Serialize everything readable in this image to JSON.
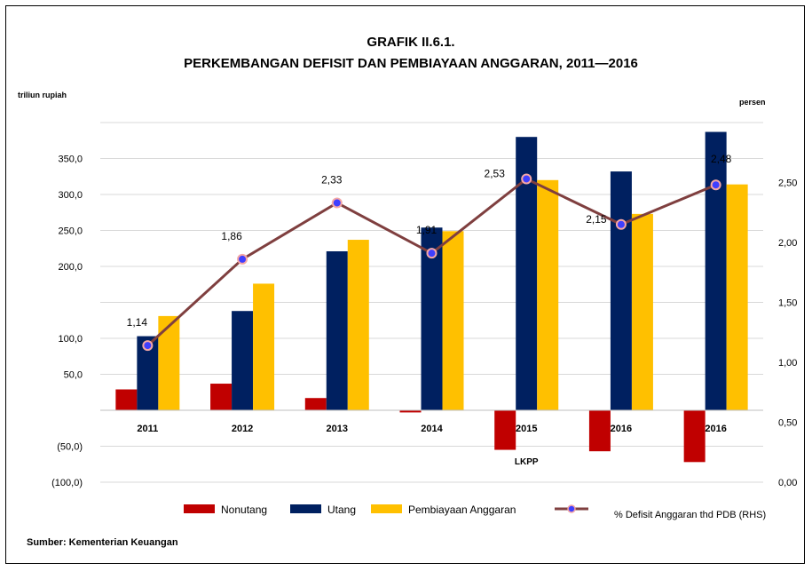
{
  "chart_data": {
    "type": "bar",
    "title": "GRAFIK II.6.1.",
    "subtitle": "PERKEMBANGAN DEFISIT DAN PEMBIAYAAN ANGGARAN, 2011—2016",
    "ylabel_left": "triliun rupiah",
    "ylabel_right": "persen",
    "categories": [
      "2011",
      "2012",
      "2013",
      "2014",
      "2015",
      "2016",
      "2016"
    ],
    "category_note": {
      "index": 4,
      "text": "LKPP"
    },
    "left_axis": {
      "ylim": [
        -100,
        400
      ],
      "ticks": [
        {
          "value": 350,
          "label": "350,0"
        },
        {
          "value": 300,
          "label": "300,0"
        },
        {
          "value": 250,
          "label": "250,0"
        },
        {
          "value": 200,
          "label": "200,0"
        },
        {
          "value": 100,
          "label": "100,0"
        },
        {
          "value": 50,
          "label": "50,0"
        },
        {
          "value": -50,
          "label": "(50,0)"
        },
        {
          "value": -100,
          "label": "(100,0)"
        }
      ]
    },
    "right_axis": {
      "ylim": [
        0,
        3
      ],
      "ticks": [
        {
          "value": 2.5,
          "label": "2,50"
        },
        {
          "value": 2.0,
          "label": "2,00"
        },
        {
          "value": 1.5,
          "label": "1,50"
        },
        {
          "value": 1.0,
          "label": "1,00"
        },
        {
          "value": 0.5,
          "label": "0,50"
        },
        {
          "value": 0.0,
          "label": "0,00"
        }
      ]
    },
    "series": [
      {
        "name": "Nonutang",
        "type": "bar",
        "axis": "left",
        "color": "#C00000",
        "values": [
          29,
          37,
          17,
          -3,
          -55,
          -57,
          -72
        ]
      },
      {
        "name": "Utang",
        "type": "bar",
        "axis": "left",
        "color": "#002060",
        "values": [
          103,
          138,
          221,
          254,
          380,
          332,
          387
        ]
      },
      {
        "name": "Pembiayaan Anggaran",
        "type": "bar",
        "axis": "left",
        "color": "#FFC000",
        "values": [
          131,
          176,
          237,
          249,
          320,
          273,
          314
        ]
      },
      {
        "name": "% Defisit Anggaran thd PDB (RHS)",
        "type": "line",
        "axis": "right",
        "color": "#7F3F3F",
        "marker_color": "#3F3FFF",
        "values": [
          1.14,
          1.86,
          2.33,
          1.91,
          2.53,
          2.15,
          2.48
        ],
        "labels": [
          "1,14",
          "1,86",
          "2,33",
          "1,91",
          "2,53",
          "2,15",
          "2,48"
        ]
      }
    ],
    "legend_position": "bottom",
    "grid": true
  },
  "source": "Sumber: Kementerian Keuangan"
}
